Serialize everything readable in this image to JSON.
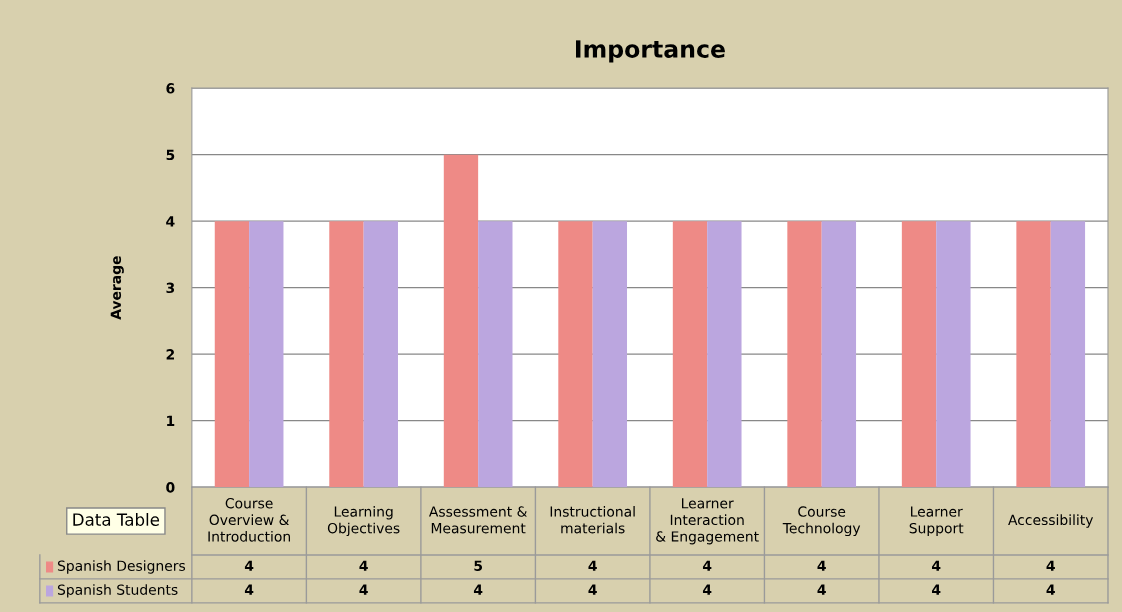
{
  "chart_data": {
    "type": "bar",
    "title": "Importance",
    "ylabel": "Average",
    "categories": [
      "Course Overview & Introduction",
      "Learning Objectives",
      "Assessment & Measurement",
      "Instructional materials",
      "Learner Interaction & Engagement",
      "Course Technology",
      "Learner Support",
      "Accessibility"
    ],
    "series": [
      {
        "name": "Spanish Designers",
        "color": "#ee8a86",
        "values": [
          4,
          4,
          5,
          4,
          4,
          4,
          4,
          4
        ]
      },
      {
        "name": "Spanish Students",
        "color": "#bba6df",
        "values": [
          4,
          4,
          4,
          4,
          4,
          4,
          4,
          4
        ]
      }
    ],
    "ylim": [
      0,
      6
    ],
    "yticks": [
      0,
      1,
      2,
      3,
      4,
      5,
      6
    ],
    "grid": "y",
    "data_labels": true,
    "legend": "bottom left",
    "annotations": [
      "Data Table"
    ]
  }
}
